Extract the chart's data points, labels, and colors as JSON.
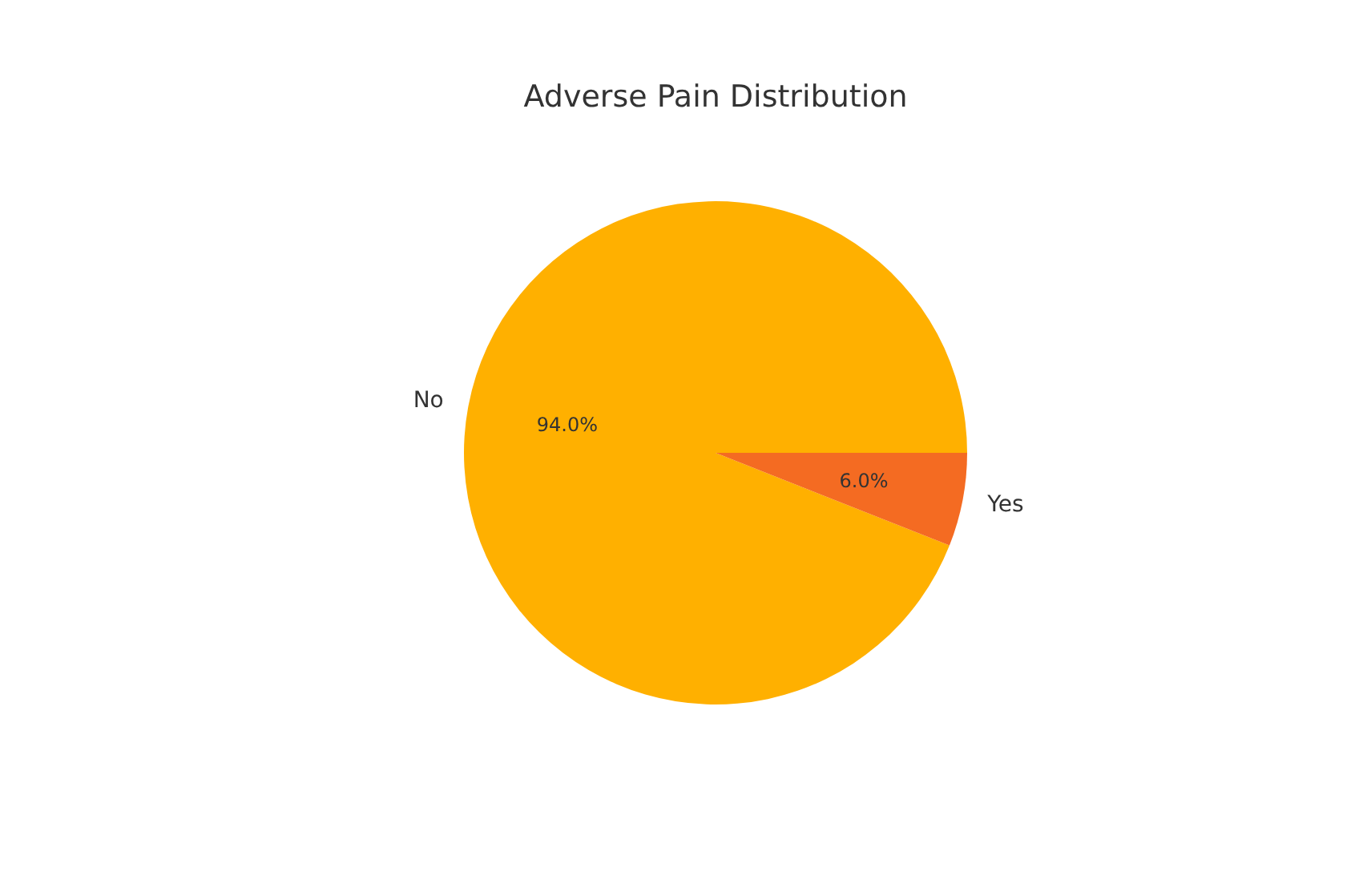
{
  "chart_data": {
    "type": "pie",
    "title": "Adverse Pain Distribution",
    "categories": [
      "No",
      "Yes"
    ],
    "values": [
      94.0,
      6.0
    ],
    "colors": [
      "#ffb000",
      "#f46b22"
    ],
    "value_labels": [
      "94.0%",
      "6.0%"
    ]
  }
}
